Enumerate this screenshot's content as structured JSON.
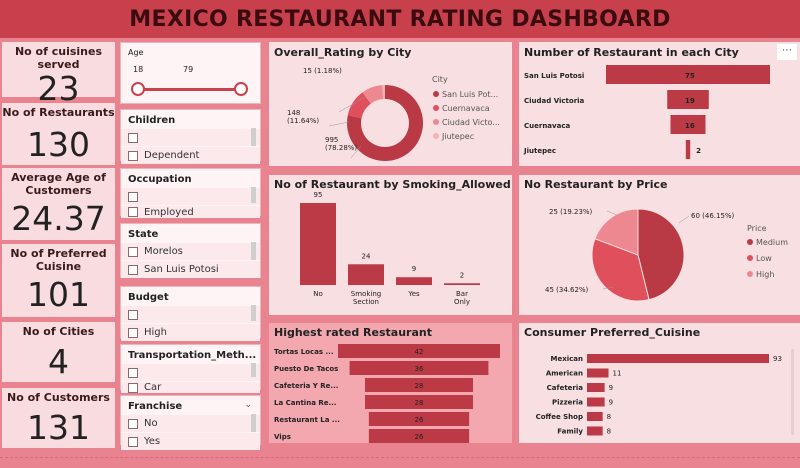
{
  "title": "MEXICO RESTAURANT RATING DASHBOARD",
  "kpis": {
    "cuisines": {
      "label": "No of cuisines served",
      "value": "23"
    },
    "restaurants": {
      "label": "No of Restaurants",
      "value": "130"
    },
    "avg_age": {
      "label": "Average Age of Customers",
      "value": "24.37"
    },
    "preferred": {
      "label": "No of Preferred Cuisine",
      "value": "101"
    },
    "cities": {
      "label": "No of Cities",
      "value": "4"
    },
    "customers": {
      "label": "No of Customers",
      "value": "131"
    }
  },
  "slicers": {
    "age": {
      "title": "Age",
      "min": "18",
      "max": "79"
    },
    "children": {
      "title": "Children",
      "options": [
        "",
        "Dependent"
      ]
    },
    "occupation": {
      "title": "Occupation",
      "options": [
        "",
        "Employed"
      ]
    },
    "state": {
      "title": "State",
      "options": [
        "Morelos",
        "San Luis Potosi"
      ]
    },
    "budget": {
      "title": "Budget",
      "options": [
        "",
        "High"
      ]
    },
    "transport": {
      "title": "Transportation_Meth...",
      "options": [
        "",
        "Car"
      ]
    },
    "franchise": {
      "title": "Franchise",
      "options": [
        "No",
        "Yes"
      ]
    }
  },
  "colors": {
    "dark": "#b93a45",
    "mid": "#e0505c",
    "light": "#ee8890",
    "pale": "#f5b3b8",
    "bar": "#bb3a46"
  },
  "icons": {
    "more": "more-options-icon",
    "dropdown": "chevron-down-icon"
  },
  "chart_data": [
    {
      "id": "donut",
      "type": "pie",
      "title": "Overall_Rating by City",
      "legend_title": "City",
      "legend": [
        "San Luis Pot...",
        "Cuernavaca",
        "Ciudad Victo...",
        "Jiutepec"
      ],
      "values": [
        995,
        148,
        113,
        15
      ],
      "data_labels": [
        "995\n(78.28%)",
        "148\n(11.64%)",
        "",
        "15 (1.18%)"
      ]
    },
    {
      "id": "city_funnel",
      "type": "bar",
      "title": "Number of Restaurant in each City",
      "categories": [
        "San Luis Potosi",
        "Ciudad Victoria",
        "Cuernavaca",
        "Jiutepec"
      ],
      "values": [
        75,
        19,
        16,
        2
      ]
    },
    {
      "id": "smoking",
      "type": "bar",
      "title": "No of Restaurant by Smoking_Allowed",
      "categories": [
        "No",
        "Smoking Section",
        "Yes",
        "Bar Only"
      ],
      "values": [
        95,
        24,
        9,
        2
      ]
    },
    {
      "id": "price",
      "type": "pie",
      "title": "No Restaurant by Price",
      "legend_title": "Price",
      "legend": [
        "Medium",
        "Low",
        "High"
      ],
      "values": [
        60,
        45,
        25
      ],
      "data_labels": [
        "60 (46.15%)",
        "45 (34.62%)",
        "25 (19.23%)"
      ]
    },
    {
      "id": "rated",
      "type": "bar",
      "title": "Highest rated Restaurant",
      "categories": [
        "Tortas Locas ...",
        "Puesto De Tacos",
        "Cafeteria Y Re...",
        "La Cantina Re...",
        "Restaurant La ...",
        "Vips"
      ],
      "values": [
        42,
        36,
        28,
        28,
        26,
        26
      ]
    },
    {
      "id": "cuisine",
      "type": "bar",
      "title": "Consumer Preferred_Cuisine",
      "categories": [
        "Mexican",
        "American",
        "Cafeteria",
        "Pizzeria",
        "Coffee Shop",
        "Family"
      ],
      "values": [
        93,
        11,
        9,
        9,
        8,
        8
      ]
    }
  ]
}
